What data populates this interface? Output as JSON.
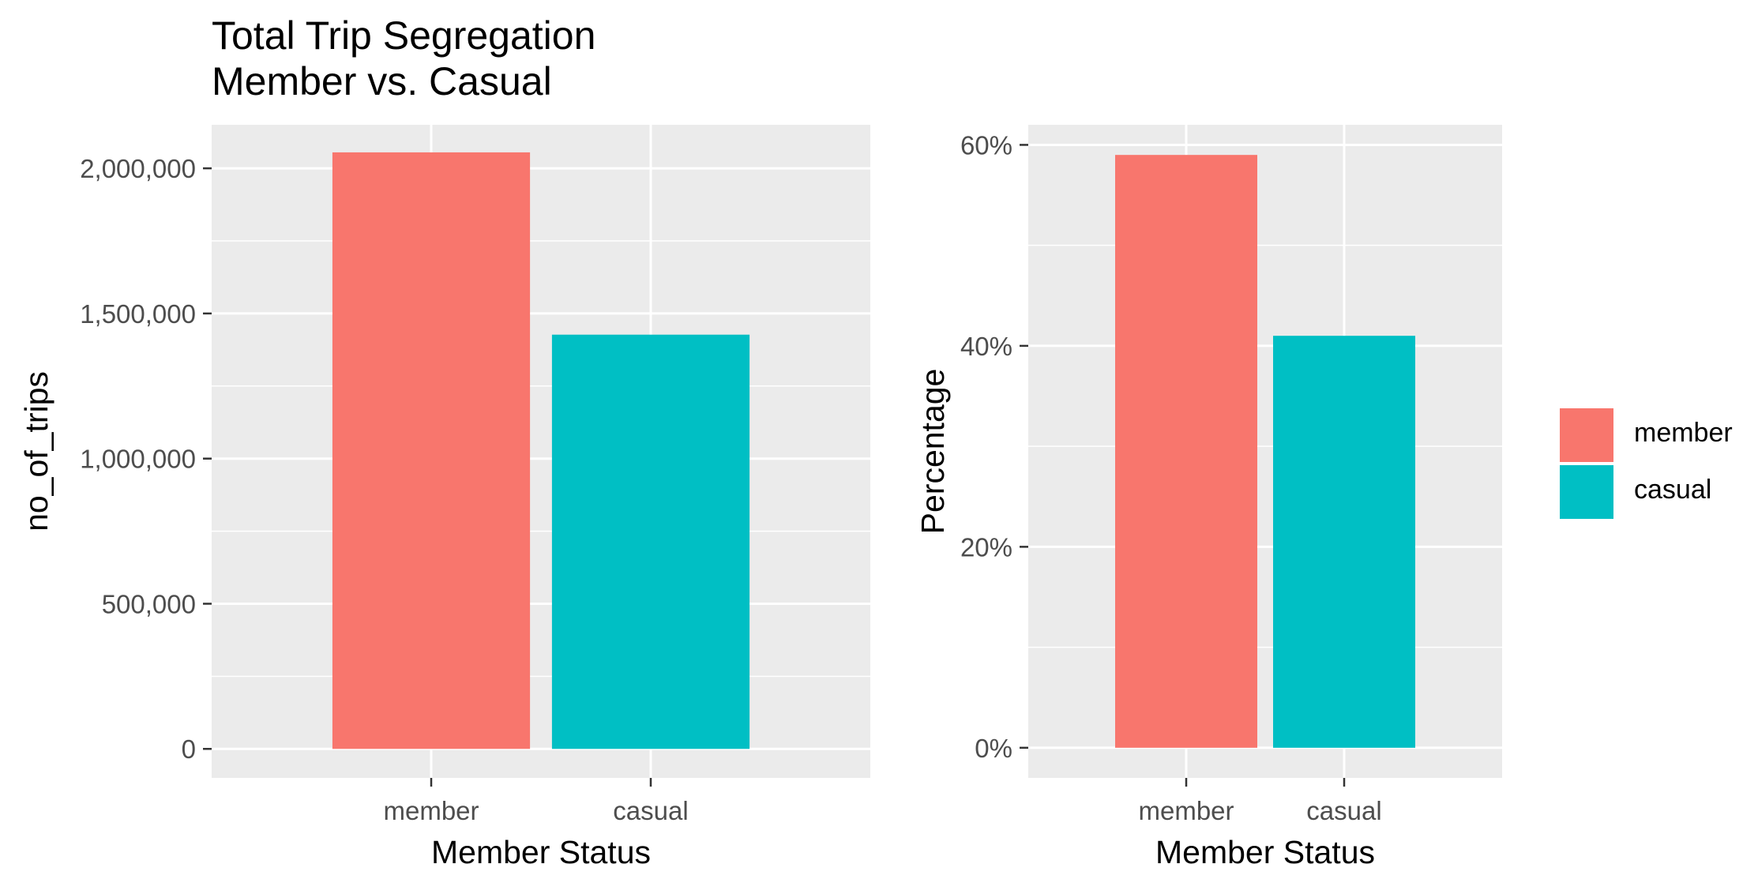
{
  "figure_title_line1": "Total Trip Segregation",
  "figure_title_line2": "Member vs. Casual",
  "colors": {
    "member": "#F8766D",
    "casual": "#00BFC4",
    "panel": "#EBEBEB",
    "grid": "#FFFFFF",
    "tick_text": "#4D4D4D"
  },
  "legend": {
    "items": [
      {
        "label": "member",
        "color": "#F8766D"
      },
      {
        "label": "casual",
        "color": "#00BFC4"
      }
    ]
  },
  "chart_data": [
    {
      "type": "bar",
      "categories": [
        "member",
        "casual"
      ],
      "values": [
        2055000,
        1427000
      ],
      "xlabel": "Member Status",
      "ylabel": "no_of_trips",
      "ylim": [
        -100000,
        2150000
      ],
      "yticks": [
        0,
        500000,
        1000000,
        1500000,
        2000000
      ],
      "ytick_labels": [
        "0",
        "500,000",
        "1,000,000",
        "1,500,000",
        "2,000,000"
      ],
      "grid": true
    },
    {
      "type": "bar",
      "categories": [
        "member",
        "casual"
      ],
      "values": [
        59.0,
        41.0
      ],
      "xlabel": "Member Status",
      "ylabel": "Percentage",
      "ylim": [
        -3,
        62
      ],
      "yticks": [
        0,
        20,
        40,
        60
      ],
      "ytick_labels": [
        "0%",
        "20%",
        "40%",
        "60%"
      ],
      "grid": true,
      "legend_position": "right"
    }
  ]
}
